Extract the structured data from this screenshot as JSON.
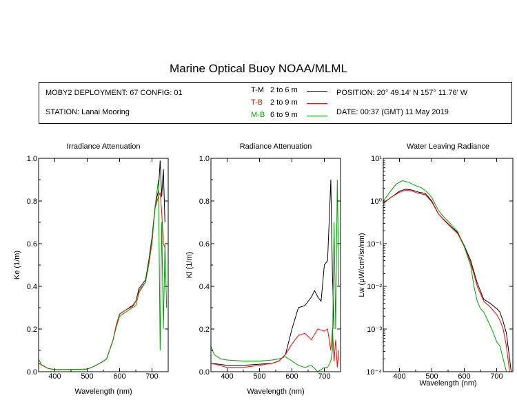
{
  "title": "Marine Optical Buoy NOAA/MLML",
  "info": {
    "deployment": "MOBY2 DEPLOYMENT: 67 CONFIG: 01",
    "station": "STATION: Lanai Mooring",
    "position": "POSITION: 20° 49.14' N   157° 11.76' W",
    "date": "DATE: 00:37 (GMT) 11 May 2019"
  },
  "legend": [
    {
      "code": "T-M",
      "range": "2 to 6  m",
      "color": "#000000"
    },
    {
      "code": "T-B",
      "range": "2 to 9  m",
      "color": "#ff0000"
    },
    {
      "code": "M-B",
      "range": "6 to 9  m",
      "color": "#00a000"
    }
  ],
  "chart_data": [
    {
      "type": "line",
      "title": "Irradiance Attenuation",
      "xlabel": "Wavelength (nm)",
      "ylabel": "Ke  (1/m)",
      "xlim": [
        350,
        750
      ],
      "ylim": [
        0,
        1.0
      ],
      "xticks": [
        400,
        500,
        600,
        700
      ],
      "yticks": [
        0,
        0.2,
        0.4,
        0.6,
        0.8,
        1.0
      ],
      "ytick_labels": [
        "0.0",
        "0.2",
        "0.4",
        "0.6",
        "0.8",
        "1.0"
      ],
      "grid": false,
      "series": [
        {
          "name": "T-M",
          "color": "#000000",
          "x": [
            350,
            380,
            400,
            450,
            500,
            520,
            540,
            560,
            580,
            590,
            600,
            620,
            640,
            650,
            660,
            680,
            690,
            700,
            710,
            720,
            725,
            730,
            735,
            740
          ],
          "y": [
            0.04,
            0.015,
            0.01,
            0.01,
            0.012,
            0.025,
            0.04,
            0.06,
            0.15,
            0.22,
            0.27,
            0.29,
            0.31,
            0.33,
            0.39,
            0.43,
            0.52,
            0.63,
            0.78,
            0.85,
            0.99,
            0.82,
            0.95,
            0.7
          ]
        },
        {
          "name": "T-B",
          "color": "#ff0000",
          "x": [
            350,
            380,
            400,
            450,
            500,
            520,
            540,
            560,
            580,
            590,
            600,
            620,
            640,
            650,
            660,
            680,
            690,
            700,
            710,
            720,
            725,
            730,
            735,
            740
          ],
          "y": [
            0.04,
            0.015,
            0.01,
            0.01,
            0.012,
            0.025,
            0.04,
            0.06,
            0.15,
            0.22,
            0.27,
            0.29,
            0.305,
            0.33,
            0.38,
            0.42,
            0.51,
            0.62,
            0.77,
            0.82,
            0.84,
            0.75,
            0.6,
            0.58
          ]
        },
        {
          "name": "M-B",
          "color": "#00a000",
          "x": [
            350,
            360,
            380,
            400,
            450,
            500,
            520,
            540,
            560,
            580,
            590,
            600,
            620,
            640,
            650,
            660,
            680,
            690,
            700,
            710,
            720,
            725,
            730,
            735,
            740,
            745
          ],
          "y": [
            0.06,
            0.03,
            0.015,
            0.01,
            0.01,
            0.012,
            0.025,
            0.04,
            0.06,
            0.15,
            0.21,
            0.26,
            0.28,
            0.3,
            0.31,
            0.37,
            0.42,
            0.5,
            0.6,
            0.78,
            0.9,
            0.1,
            0.7,
            0.2,
            0.6,
            0.3
          ]
        }
      ]
    },
    {
      "type": "line",
      "title": "Radiance Attenuation",
      "xlabel": "Wavelength (nm)",
      "ylabel": "Kl  (1/m)",
      "xlim": [
        350,
        750
      ],
      "ylim": [
        0,
        1.0
      ],
      "xticks": [
        400,
        500,
        600,
        700
      ],
      "yticks": [
        0,
        0.2,
        0.4,
        0.6,
        0.8,
        1.0
      ],
      "ytick_labels": [
        "0.0",
        "0.2",
        "0.4",
        "0.6",
        "0.8",
        "1.0"
      ],
      "grid": false,
      "series": [
        {
          "name": "T-M",
          "color": "#000000",
          "x": [
            350,
            400,
            450,
            500,
            540,
            560,
            580,
            600,
            620,
            640,
            660,
            670,
            680,
            690,
            700,
            710,
            715,
            720,
            725,
            730
          ],
          "y": [
            0.04,
            0.03,
            0.03,
            0.035,
            0.04,
            0.05,
            0.08,
            0.2,
            0.3,
            0.31,
            0.35,
            0.38,
            0.35,
            0.33,
            0.5,
            0.52,
            0.7,
            0.9,
            0.45,
            0.2
          ]
        },
        {
          "name": "T-B",
          "color": "#ff0000",
          "x": [
            350,
            400,
            450,
            500,
            540,
            560,
            580,
            600,
            620,
            640,
            660,
            680,
            700,
            710,
            720,
            725,
            730,
            735,
            740,
            745
          ],
          "y": [
            0.04,
            0.02,
            0.02,
            0.03,
            0.04,
            0.05,
            0.08,
            0.13,
            0.17,
            0.18,
            0.15,
            0.2,
            0.19,
            0.2,
            0.1,
            0.2,
            0.05,
            0.15,
            0.02,
            0.1
          ]
        },
        {
          "name": "M-B",
          "color": "#00a000",
          "x": [
            350,
            360,
            380,
            400,
            450,
            500,
            540,
            560,
            580,
            600,
            620,
            640,
            660,
            680,
            700,
            710,
            720,
            725,
            730,
            735,
            740,
            745
          ],
          "y": [
            0.12,
            0.08,
            0.06,
            0.055,
            0.05,
            0.05,
            0.055,
            0.06,
            0.07,
            0.05,
            0.03,
            0.02,
            0.03,
            0.0,
            0.02,
            0.02,
            0.05,
            0.1,
            0.7,
            0.2,
            0.9,
            0.4
          ]
        }
      ]
    },
    {
      "type": "line",
      "title": "Water Leaving Radiance",
      "xlabel": "Wavelength (nm)",
      "ylabel": "Lw  (μW/cm²/sr/nm)",
      "xlim": [
        350,
        750
      ],
      "ylim": [
        0.0001,
        10
      ],
      "yscale": "log",
      "xticks": [
        400,
        500,
        600,
        700
      ],
      "yticks": [
        0.0001,
        0.001,
        0.01,
        0.1,
        1,
        10
      ],
      "ytick_labels": [
        "10⁻⁴",
        "10⁻³",
        "10⁻²",
        "10⁻¹",
        "10⁰",
        "10¹"
      ],
      "grid": false,
      "series": [
        {
          "name": "T-M",
          "color": "#000000",
          "x": [
            350,
            380,
            400,
            420,
            440,
            460,
            480,
            500,
            520,
            540,
            560,
            580,
            600,
            620,
            640,
            660,
            680,
            700,
            710,
            720,
            730,
            740,
            745
          ],
          "y": [
            0.9,
            1.3,
            1.7,
            1.9,
            1.8,
            1.6,
            1.5,
            1.0,
            0.5,
            0.35,
            0.25,
            0.18,
            0.09,
            0.04,
            0.012,
            0.005,
            0.004,
            0.003,
            0.0025,
            0.0015,
            0.0008,
            0.0002,
            0.0001
          ]
        },
        {
          "name": "T-B",
          "color": "#ff0000",
          "x": [
            350,
            380,
            400,
            420,
            440,
            460,
            480,
            500,
            520,
            540,
            560,
            580,
            600,
            620,
            640,
            660,
            680,
            700,
            710,
            720,
            730,
            740
          ],
          "y": [
            0.9,
            1.3,
            1.6,
            1.8,
            1.7,
            1.5,
            1.4,
            0.95,
            0.5,
            0.34,
            0.24,
            0.17,
            0.085,
            0.035,
            0.01,
            0.0045,
            0.0033,
            0.0022,
            0.0016,
            0.001,
            0.0004,
            0.0001
          ]
        },
        {
          "name": "M-B",
          "color": "#00a000",
          "x": [
            350,
            370,
            390,
            410,
            430,
            450,
            470,
            490,
            500,
            520,
            540,
            560,
            580,
            600,
            620,
            630,
            640,
            650,
            660,
            680,
            690,
            700,
            710,
            720,
            730
          ],
          "y": [
            1.0,
            1.6,
            2.5,
            3.0,
            2.7,
            2.3,
            2.0,
            1.5,
            1.2,
            0.6,
            0.4,
            0.28,
            0.19,
            0.085,
            0.03,
            0.01,
            0.0045,
            0.003,
            0.0025,
            0.0012,
            0.0008,
            0.0005,
            0.0004,
            0.0002,
            0.0001
          ]
        }
      ]
    }
  ]
}
